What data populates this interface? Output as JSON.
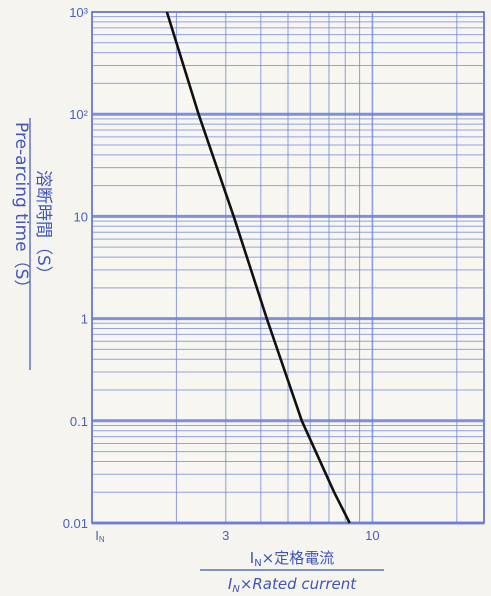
{
  "chart_data": {
    "type": "line",
    "title": "",
    "xscale": "log",
    "yscale": "log",
    "xlim": [
      1,
      25
    ],
    "ylim": [
      0.01,
      1000
    ],
    "grid": true,
    "x_ticks": [
      {
        "value": 1,
        "label": "I",
        "sub": "N"
      },
      {
        "value": 3,
        "label": "3",
        "sub": ""
      },
      {
        "value": 10,
        "label": "10",
        "sub": ""
      }
    ],
    "y_ticks": [
      {
        "value": 0.01,
        "label": "0.01"
      },
      {
        "value": 0.1,
        "label": "0.1"
      },
      {
        "value": 1,
        "label": "1"
      },
      {
        "value": 10,
        "label": "10"
      },
      {
        "value": 100,
        "label": "10²"
      },
      {
        "value": 1000,
        "label": "10³"
      }
    ],
    "ylabel_jp": "溶断時間（S）",
    "ylabel_en": "Pre-arcing time（S）",
    "xlabel_jp": "I",
    "xlabel_jp_sub": "N",
    "xlabel_jp_rest": "×定格電流",
    "xlabel_en": "I",
    "xlabel_en_sub": "N",
    "xlabel_en_rest": "×Rated current",
    "series": [
      {
        "color": "#111111",
        "x": [
          1.85,
          2.4,
          3.2,
          4.2,
          5.6,
          7.3,
          8.3
        ],
        "y": [
          1000,
          100,
          10,
          1,
          0.1,
          0.02,
          0.01
        ]
      }
    ]
  }
}
